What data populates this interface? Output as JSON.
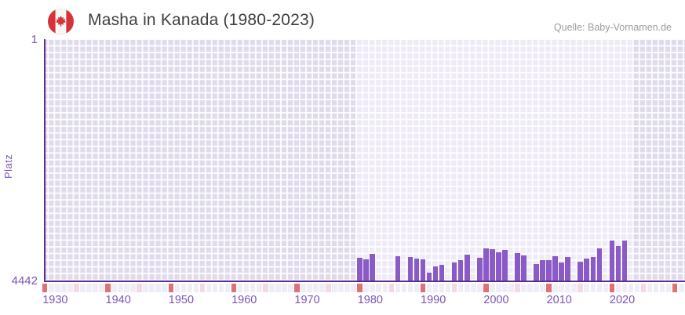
{
  "header": {
    "title": "Masha in Kanada (1980-2023)",
    "source": "Quelle: Baby-Vornamen.de"
  },
  "chart_data": {
    "type": "bar",
    "title": "Masha in Kanada (1980-2023)",
    "ylabel": "Platz",
    "y_axis": {
      "top_label": "1",
      "bottom_label": "4442",
      "min": 1,
      "max": 4442,
      "inverted": true,
      "note": "rank 1 at top of plot, bars grow up from bottom"
    },
    "x_axis": {
      "start": 1930,
      "end": 2032,
      "tick_interval": 10,
      "tick_labels": [
        "1930",
        "1940",
        "1950",
        "1960",
        "1970",
        "1980",
        "1990",
        "2000",
        "2010",
        "2020"
      ]
    },
    "highlight_band": {
      "from": 1980,
      "to": 2023
    },
    "series": [
      {
        "name": "Platz",
        "points": [
          {
            "year": 1980,
            "rank": 4022
          },
          {
            "year": 1981,
            "rank": 4042
          },
          {
            "year": 1982,
            "rank": 3946
          },
          {
            "year": 1986,
            "rank": 3984
          },
          {
            "year": 1988,
            "rank": 4003
          },
          {
            "year": 1989,
            "rank": 4032
          },
          {
            "year": 1990,
            "rank": 4046
          },
          {
            "year": 1991,
            "rank": 4287
          },
          {
            "year": 1992,
            "rank": 4176
          },
          {
            "year": 1993,
            "rank": 4143
          },
          {
            "year": 1995,
            "rank": 4104
          },
          {
            "year": 1996,
            "rank": 4061
          },
          {
            "year": 1997,
            "rank": 3960
          },
          {
            "year": 1999,
            "rank": 4022
          },
          {
            "year": 2000,
            "rank": 3840
          },
          {
            "year": 2001,
            "rank": 3864
          },
          {
            "year": 2002,
            "rank": 3913
          },
          {
            "year": 2003,
            "rank": 3878
          },
          {
            "year": 2005,
            "rank": 3927
          },
          {
            "year": 2006,
            "rank": 3974
          },
          {
            "year": 2008,
            "rank": 4128
          },
          {
            "year": 2009,
            "rank": 4056
          },
          {
            "year": 2010,
            "rank": 4065
          },
          {
            "year": 2011,
            "rank": 3984
          },
          {
            "year": 2012,
            "rank": 4104
          },
          {
            "year": 2013,
            "rank": 4007
          },
          {
            "year": 2015,
            "rank": 4089
          },
          {
            "year": 2016,
            "rank": 4032
          },
          {
            "year": 2017,
            "rank": 3999
          },
          {
            "year": 2018,
            "rank": 3840
          },
          {
            "year": 2020,
            "rank": 3696
          },
          {
            "year": 2021,
            "rank": 3806
          },
          {
            "year": 2022,
            "rank": 3696
          }
        ]
      }
    ],
    "years_without_rank": [
      1983,
      1984,
      1985,
      1987,
      1994,
      1998,
      2004,
      2007,
      2014,
      2019,
      2023
    ],
    "legend": "none",
    "grid": true,
    "colors": {
      "bar": "#8a5ac6",
      "axis": "#5c2d92",
      "tick": "#7d55b4",
      "title": "#3e3e3e",
      "source": "#9c9c9c",
      "plot_bg": "#e0dbec",
      "band_bg": "#eeeaf7",
      "grid_line": "rgba(255,255,255,0.88)",
      "strip_default": "#f1edf7",
      "strip_half_decade": "#f3d9e2",
      "strip_decade": "#e26f76",
      "flag_red": "#d4333a"
    }
  }
}
